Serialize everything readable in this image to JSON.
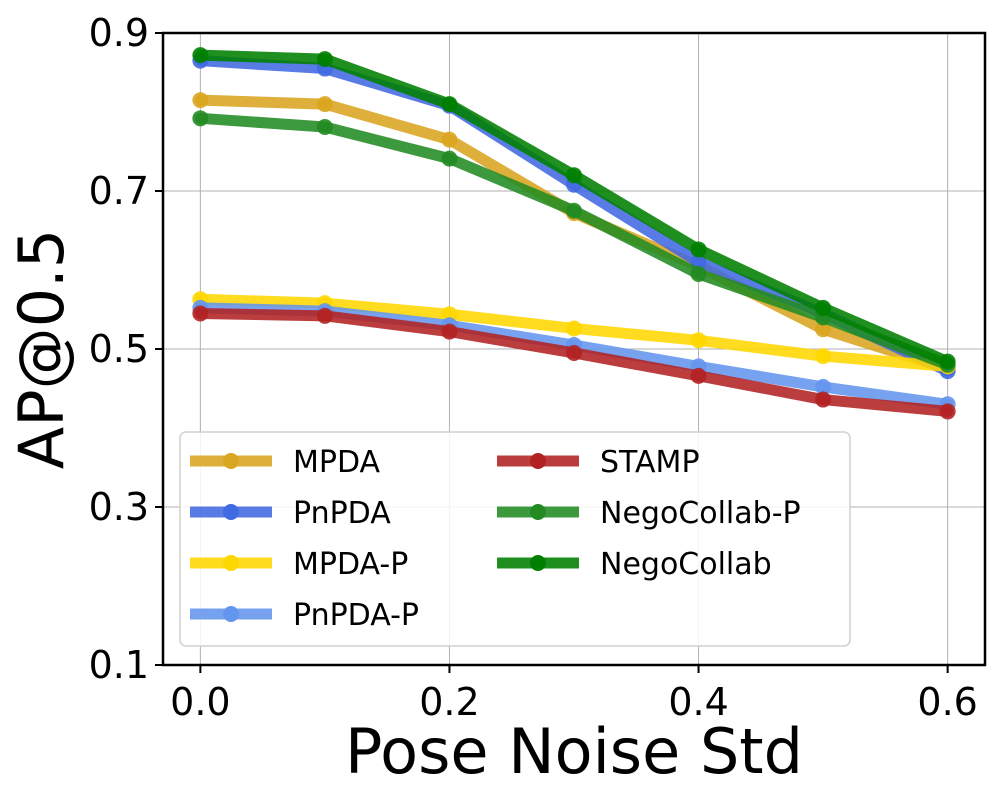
{
  "chart_data": {
    "type": "line",
    "title": "",
    "xlabel": "Pose Noise Std",
    "ylabel": "AP@0.5",
    "x": [
      0.0,
      0.1,
      0.2,
      0.3,
      0.4,
      0.5,
      0.6
    ],
    "xlim": [
      -0.03,
      0.63
    ],
    "ylim": [
      0.1,
      0.9
    ],
    "x_ticks": [
      0.0,
      0.2,
      0.4,
      0.6
    ],
    "x_tick_labels": [
      "0.0",
      "0.2",
      "0.4",
      "0.6"
    ],
    "y_ticks": [
      0.1,
      0.3,
      0.5,
      0.7,
      0.9
    ],
    "y_tick_labels": [
      "0.1",
      "0.3",
      "0.5",
      "0.7",
      "0.9"
    ],
    "grid": true,
    "legend_position": "lower-left",
    "series": [
      {
        "name": "MPDA",
        "color": "#DAA520",
        "values": [
          0.815,
          0.81,
          0.765,
          0.672,
          0.605,
          0.525,
          0.475
        ]
      },
      {
        "name": "PnPDA",
        "color": "#4169E1",
        "values": [
          0.865,
          0.855,
          0.808,
          0.708,
          0.61,
          0.545,
          0.472
        ]
      },
      {
        "name": "MPDA-P",
        "color": "#FFD700",
        "values": [
          0.563,
          0.558,
          0.544,
          0.526,
          0.511,
          0.491,
          0.478
        ]
      },
      {
        "name": "PnPDA-P",
        "color": "#6495ED",
        "values": [
          0.552,
          0.548,
          0.53,
          0.505,
          0.478,
          0.452,
          0.43
        ]
      },
      {
        "name": "STAMP",
        "color": "#B22222",
        "values": [
          0.545,
          0.542,
          0.522,
          0.495,
          0.466,
          0.436,
          0.421
        ]
      },
      {
        "name": "NegoCollab-P",
        "color": "#228B22",
        "values": [
          0.792,
          0.781,
          0.741,
          0.675,
          0.595,
          0.54,
          0.48
        ]
      },
      {
        "name": "NegoCollab",
        "color": "#008000",
        "values": [
          0.872,
          0.867,
          0.81,
          0.72,
          0.626,
          0.552,
          0.484
        ]
      }
    ]
  }
}
